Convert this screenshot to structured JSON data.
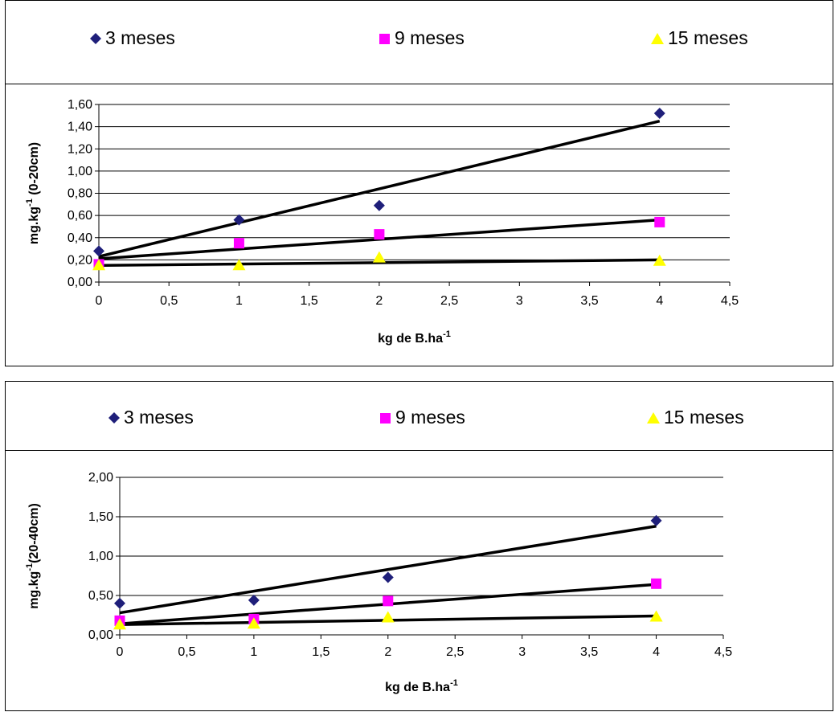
{
  "charts": [
    {
      "legend": [
        {
          "name": "3 meses",
          "marker": "diamond",
          "color": "#1f1f7a"
        },
        {
          "name": "9 meses",
          "marker": "square",
          "color": "#ff00ff"
        },
        {
          "name": "15 meses",
          "marker": "triangle",
          "color": "#ffff00"
        }
      ],
      "ylabel": "mg.kg",
      "ylabel_sup": "-1",
      "ylabel_suffix": " (0-20cm)",
      "xlabel": "kg de B.ha",
      "xlabel_sup": "-1"
    },
    {
      "legend": [
        {
          "name": "3 meses",
          "marker": "diamond",
          "color": "#1f1f7a"
        },
        {
          "name": "9 meses",
          "marker": "square",
          "color": "#ff00ff"
        },
        {
          "name": "15 meses",
          "marker": "triangle",
          "color": "#ffff00"
        }
      ],
      "ylabel": "mg.kg",
      "ylabel_sup": "-1",
      "ylabel_suffix": "(20-40cm)",
      "xlabel": "kg de B.ha",
      "xlabel_sup": "-1"
    }
  ],
  "chart_data": [
    {
      "type": "scatter",
      "title": "",
      "xlabel": "kg de B.ha-1",
      "ylabel": "mg.kg-1 (0-20cm)",
      "xlim": [
        0,
        4.5
      ],
      "ylim": [
        0,
        1.6
      ],
      "x_ticks": [
        "0",
        "0,5",
        "1",
        "1,5",
        "2",
        "2,5",
        "3",
        "3,5",
        "4",
        "4,5"
      ],
      "y_ticks": [
        "0,00",
        "0,20",
        "0,40",
        "0,60",
        "0,80",
        "1,00",
        "1,20",
        "1,40",
        "1,60"
      ],
      "grid": "horizontal",
      "legend_position": "top",
      "series": [
        {
          "name": "3 meses",
          "x": [
            0,
            1,
            2,
            4
          ],
          "y": [
            0.28,
            0.56,
            0.69,
            1.52
          ],
          "trend": [
            [
              0,
              0.23
            ],
            [
              4,
              1.45
            ]
          ],
          "color": "#1f1f7a",
          "marker": "diamond"
        },
        {
          "name": "9 meses",
          "x": [
            0,
            1,
            2,
            4
          ],
          "y": [
            0.16,
            0.35,
            0.43,
            0.54
          ],
          "trend": [
            [
              0,
              0.21
            ],
            [
              4,
              0.56
            ]
          ],
          "color": "#ff00ff",
          "marker": "square"
        },
        {
          "name": "15 meses",
          "x": [
            0,
            1,
            2,
            4
          ],
          "y": [
            0.15,
            0.15,
            0.22,
            0.19
          ],
          "trend": [
            [
              0,
              0.15
            ],
            [
              4,
              0.2
            ]
          ],
          "color": "#ffff00",
          "marker": "triangle"
        }
      ]
    },
    {
      "type": "scatter",
      "title": "",
      "xlabel": "kg de B.ha-1",
      "ylabel": "mg.kg-1(20-40cm)",
      "xlim": [
        0,
        4.5
      ],
      "ylim": [
        0,
        2.0
      ],
      "x_ticks": [
        "0",
        "0,5",
        "1",
        "1,5",
        "2",
        "2,5",
        "3",
        "3,5",
        "4",
        "4,5"
      ],
      "y_ticks": [
        "0,00",
        "0,50",
        "1,00",
        "1,50",
        "2,00"
      ],
      "grid": "horizontal",
      "legend_position": "top",
      "series": [
        {
          "name": "3 meses",
          "x": [
            0,
            1,
            2,
            4
          ],
          "y": [
            0.4,
            0.44,
            0.73,
            1.45
          ],
          "trend": [
            [
              0,
              0.28
            ],
            [
              4,
              1.38
            ]
          ],
          "color": "#1f1f7a",
          "marker": "diamond"
        },
        {
          "name": "9 meses",
          "x": [
            0,
            1,
            2,
            4
          ],
          "y": [
            0.18,
            0.2,
            0.43,
            0.65
          ],
          "trend": [
            [
              0,
              0.14
            ],
            [
              4,
              0.64
            ]
          ],
          "color": "#ff00ff",
          "marker": "square"
        },
        {
          "name": "15 meses",
          "x": [
            0,
            1,
            2,
            4
          ],
          "y": [
            0.13,
            0.14,
            0.22,
            0.23
          ],
          "trend": [
            [
              0,
              0.13
            ],
            [
              4,
              0.24
            ]
          ],
          "color": "#ffff00",
          "marker": "triangle"
        }
      ]
    }
  ]
}
